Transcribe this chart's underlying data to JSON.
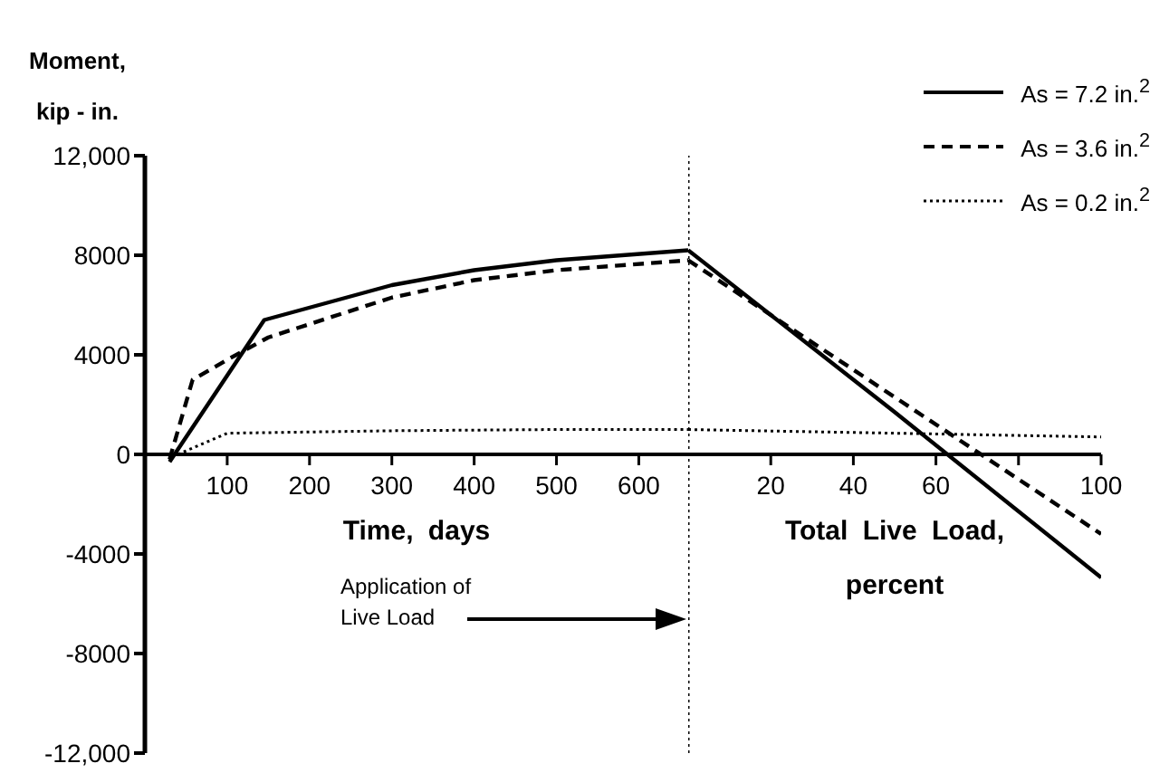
{
  "chart_data": [
    {
      "type": "line",
      "ylabel": "Moment,\nkip - in.",
      "xlabel": "Time, days",
      "xlim": [
        0,
        660
      ],
      "xticks": [
        100,
        200,
        300,
        400,
        500,
        600
      ],
      "ylim": [
        -12000,
        12000
      ],
      "yticks": [
        {
          "value": -12000,
          "label": "-12,000"
        },
        -8000,
        -4000,
        0,
        4000,
        8000,
        {
          "value": 12000,
          "label": "12,000"
        }
      ],
      "grid": false,
      "marker": "none",
      "legend": false,
      "annotations": [
        "Application of Live Load"
      ],
      "series": [
        {
          "color": "#000000",
          "line_style": "solid",
          "x": [
            30,
            145,
            300,
            400,
            500,
            660
          ],
          "values": [
            -300,
            5400,
            6800,
            7400,
            7800,
            8200
          ]
        },
        {
          "color": "#000000",
          "line_style": "dashed",
          "x": [
            30,
            58,
            100,
            150,
            300,
            400,
            500,
            660
          ],
          "values": [
            -200,
            3000,
            3800,
            4700,
            6300,
            7000,
            7400,
            7800
          ]
        },
        {
          "color": "#000000",
          "line_style": "dotted",
          "x": [
            40,
            100,
            300,
            500,
            660
          ],
          "values": [
            0,
            850,
            950,
            1000,
            1000
          ]
        }
      ]
    },
    {
      "type": "line",
      "xlabel": "Total Live Load, percent",
      "xlim": [
        0,
        100
      ],
      "xticks": [
        20,
        40,
        60,
        {
          "value": 80,
          "label": null
        },
        100
      ],
      "ylim": [
        -12000,
        12000
      ],
      "tick_labels": "x",
      "grid": false,
      "marker": "none",
      "legend": "top right",
      "ref_lines": [
        {
          "axis": "x",
          "value": 0,
          "line_style": "dotted",
          "color": "#000000"
        }
      ],
      "series": [
        {
          "name": "As = 7.2 in.$^{2}$",
          "color": "#000000",
          "line_style": "solid",
          "x": [
            0,
            50,
            100
          ],
          "values": [
            8200,
            1700,
            -4950
          ]
        },
        {
          "name": "As = 3.6 in.$^{2}$",
          "color": "#000000",
          "line_style": "dashed",
          "x": [
            0,
            50,
            100
          ],
          "values": [
            7800,
            2300,
            -3200
          ]
        },
        {
          "name": "As = 0.2 in.$^{2}$",
          "color": "#000000",
          "line_style": "dotted",
          "x": [
            0,
            50,
            100
          ],
          "values": [
            1000,
            850,
            700
          ]
        }
      ]
    }
  ]
}
